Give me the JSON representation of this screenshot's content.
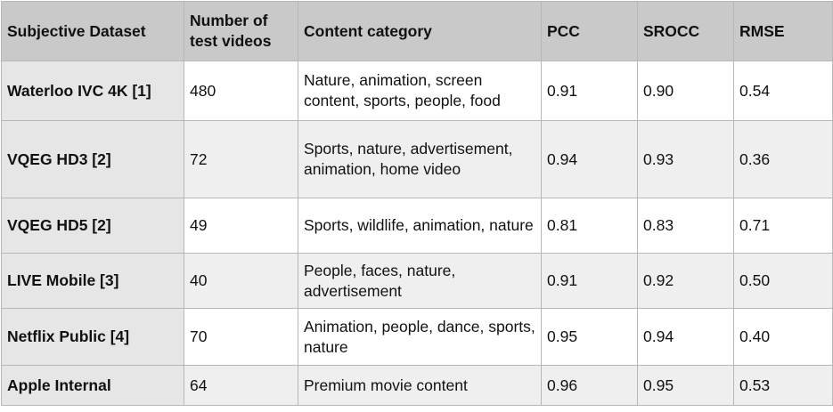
{
  "table": {
    "headers": {
      "dataset": "Subjective Dataset",
      "num_videos": "Number of test videos",
      "content": "Content category",
      "pcc": "PCC",
      "srocc": "SROCC",
      "rmse": "RMSE"
    },
    "rows": [
      {
        "dataset": "Waterloo IVC 4K [1]",
        "num_videos": "480",
        "content": "Nature, animation, screen content, sports, people, food",
        "pcc": "0.91",
        "srocc": "0.90",
        "rmse": "0.54"
      },
      {
        "dataset": "VQEG HD3 [2]",
        "num_videos": "72",
        "content": "Sports, nature, advertisement, animation, home video",
        "pcc": "0.94",
        "srocc": "0.93",
        "rmse": "0.36"
      },
      {
        "dataset": "VQEG HD5 [2]",
        "num_videos": "49",
        "content": "Sports, wildlife, animation, nature",
        "pcc": "0.81",
        "srocc": "0.83",
        "rmse": "0.71"
      },
      {
        "dataset": "LIVE Mobile [3]",
        "num_videos": "40",
        "content": "People, faces, nature, advertisement",
        "pcc": "0.91",
        "srocc": "0.92",
        "rmse": "0.50"
      },
      {
        "dataset": "Netflix Public [4]",
        "num_videos": "70",
        "content": "Animation, people, dance, sports, nature",
        "pcc": "0.95",
        "srocc": "0.94",
        "rmse": "0.40"
      },
      {
        "dataset": "Apple Internal",
        "num_videos": "64",
        "content": "Premium movie content",
        "pcc": "0.96",
        "srocc": "0.95",
        "rmse": "0.53"
      }
    ]
  }
}
